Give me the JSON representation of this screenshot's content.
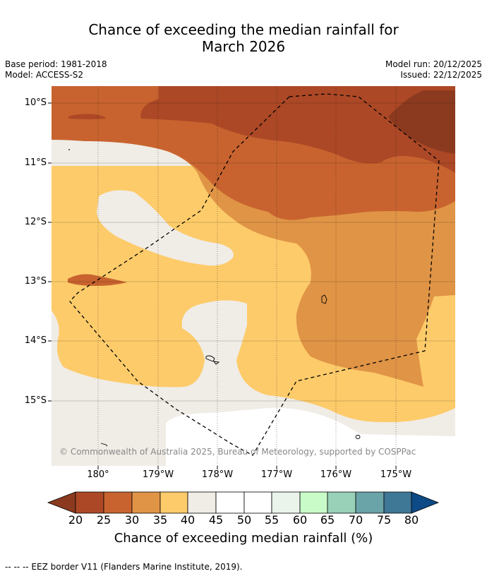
{
  "title_line1": "Chance of exceeding the median rainfall for",
  "title_line2": "March 2026",
  "base_period": "Base period: 1981-2018",
  "model": "Model: ACCESS-S2",
  "model_run": "Model run: 20/12/2025",
  "issued": "Issued: 22/12/2025",
  "lat_labels": [
    "10°S",
    "11°S",
    "12°S",
    "13°S",
    "14°S",
    "15°S"
  ],
  "lon_labels": [
    "180°",
    "179°W",
    "178°W",
    "177°W",
    "176°W",
    "175°W"
  ],
  "copyright": "© Commonwealth of Australia 2025, Bureau of Meteorology, supported by COSPPac",
  "colorbar": {
    "ticks": [
      "20",
      "25",
      "30",
      "35",
      "40",
      "45",
      "50",
      "55",
      "60",
      "65",
      "70",
      "75",
      "80"
    ],
    "colors": {
      "under": "#8b3a1f",
      "b20_25": "#ac4826",
      "b25_30": "#c8632f",
      "b30_35": "#e09446",
      "b35_40": "#fdcb6a",
      "b40_45": "#f0ece6",
      "b45_50": "#ffffff",
      "b50_55": "#ffffff",
      "b55_60": "#eaf4ea",
      "b60_65": "#c8fbc8",
      "b65_70": "#98d0b8",
      "b70_75": "#6aa3a8",
      "b75_80": "#3f7797",
      "over": "#0d4a86"
    },
    "label": "Chance of exceeding median rainfall (%)"
  },
  "eez_note": "--  --  -- EEZ border V11 (Flanders Marine Institute, 2019)."
}
